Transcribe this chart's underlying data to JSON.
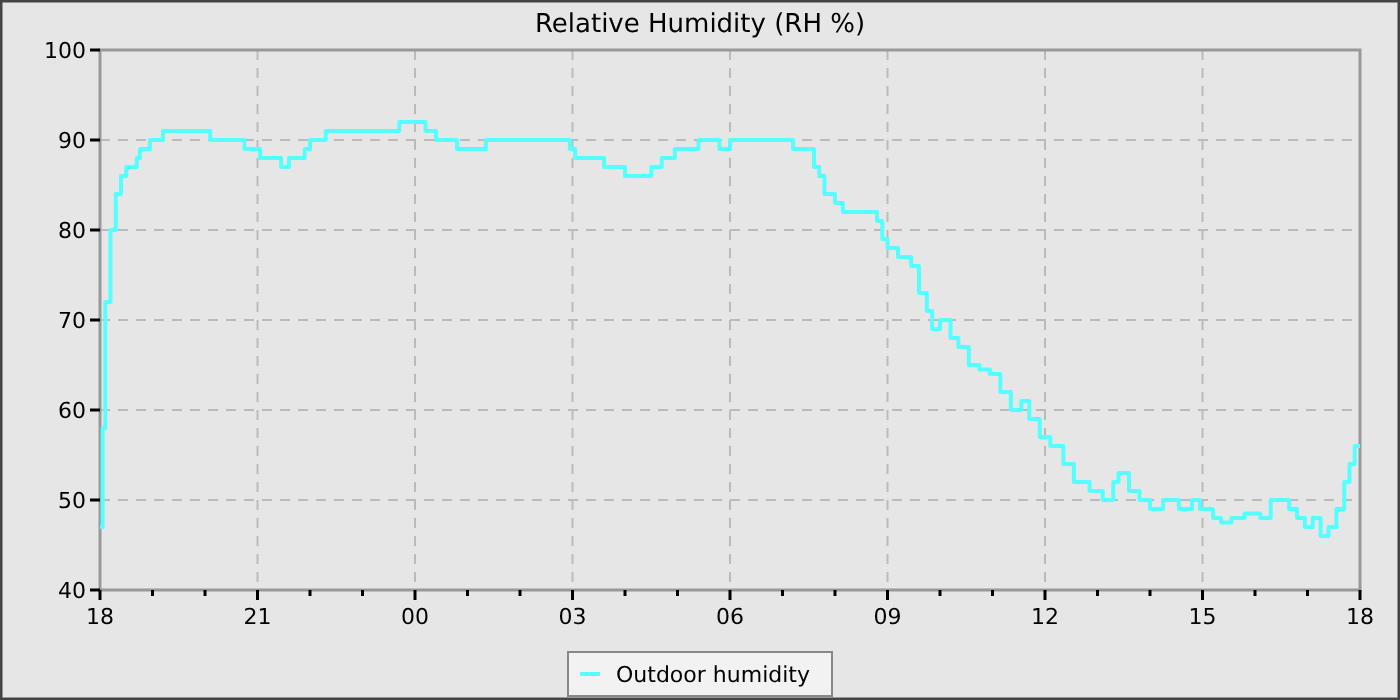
{
  "chart_data": {
    "type": "step",
    "title": "Relative Humidity (RH %)",
    "xlim": [
      18,
      42
    ],
    "ylim": [
      40,
      100
    ],
    "xticks": [
      {
        "value": 18,
        "label": "18"
      },
      {
        "value": 19,
        "label": null
      },
      {
        "value": 20,
        "label": null
      },
      {
        "value": 21,
        "label": "21"
      },
      {
        "value": 22,
        "label": null
      },
      {
        "value": 23,
        "label": null
      },
      {
        "value": 24,
        "label": "00"
      },
      {
        "value": 25,
        "label": null
      },
      {
        "value": 26,
        "label": null
      },
      {
        "value": 27,
        "label": "03"
      },
      {
        "value": 28,
        "label": null
      },
      {
        "value": 29,
        "label": null
      },
      {
        "value": 30,
        "label": "06"
      },
      {
        "value": 31,
        "label": null
      },
      {
        "value": 32,
        "label": null
      },
      {
        "value": 33,
        "label": "09"
      },
      {
        "value": 34,
        "label": null
      },
      {
        "value": 35,
        "label": null
      },
      {
        "value": 36,
        "label": "12"
      },
      {
        "value": 37,
        "label": null
      },
      {
        "value": 38,
        "label": null
      },
      {
        "value": 39,
        "label": "15"
      },
      {
        "value": 40,
        "label": null
      },
      {
        "value": 41,
        "label": null
      },
      {
        "value": 42,
        "label": "18"
      }
    ],
    "yticks": [
      40,
      50,
      60,
      70,
      80,
      90,
      100
    ],
    "grid": true,
    "legend": "bottom",
    "line_style": "solid",
    "series": [
      {
        "name": "Outdoor humidity",
        "color": "#55ffff",
        "x": [
          18.0,
          18.05,
          18.1,
          18.2,
          18.3,
          18.4,
          18.5,
          18.7,
          18.76,
          18.95,
          19.2,
          20.1,
          20.75,
          21.05,
          21.45,
          21.6,
          21.9,
          22.0,
          22.3,
          23.7,
          24.2,
          24.4,
          24.8,
          25.35,
          26.95,
          27.05,
          27.6,
          28.0,
          28.5,
          28.7,
          28.95,
          29.4,
          29.8,
          30.0,
          31.2,
          31.6,
          31.7,
          31.8,
          32.0,
          32.15,
          32.4,
          32.8,
          32.9,
          33.0,
          33.2,
          33.45,
          33.6,
          33.75,
          33.85,
          34.0,
          34.2,
          34.35,
          34.55,
          34.75,
          34.95,
          35.15,
          35.35,
          35.55,
          35.7,
          35.9,
          36.1,
          36.35,
          36.55,
          36.85,
          37.1,
          37.3,
          37.4,
          37.6,
          37.8,
          38.0,
          38.25,
          38.55,
          38.8,
          38.95,
          39.2,
          39.35,
          39.55,
          39.8,
          40.1,
          40.3,
          40.65,
          40.8,
          40.95,
          41.1,
          41.25,
          41.4,
          41.55,
          41.7,
          41.8,
          41.9,
          42.0
        ],
        "values": [
          47,
          58,
          72,
          80,
          84,
          86,
          87,
          88,
          89,
          90,
          91,
          90,
          89,
          88,
          87,
          88,
          89,
          90,
          91,
          92,
          91,
          90,
          89,
          90,
          89,
          88,
          87,
          86,
          87,
          88,
          89,
          90,
          89,
          90,
          89,
          87,
          86,
          84,
          83,
          82,
          82,
          81,
          79,
          78,
          77,
          76,
          73,
          71,
          69,
          70,
          68,
          67,
          65,
          64.5,
          64,
          62,
          60,
          61,
          59,
          57,
          56,
          54,
          52,
          51,
          50,
          52,
          53,
          51,
          50,
          49,
          50,
          49,
          50,
          49,
          48,
          47.5,
          48,
          48.5,
          48,
          50,
          49,
          48,
          47,
          48,
          46,
          47,
          49,
          52,
          54,
          56,
          56
        ]
      }
    ]
  }
}
